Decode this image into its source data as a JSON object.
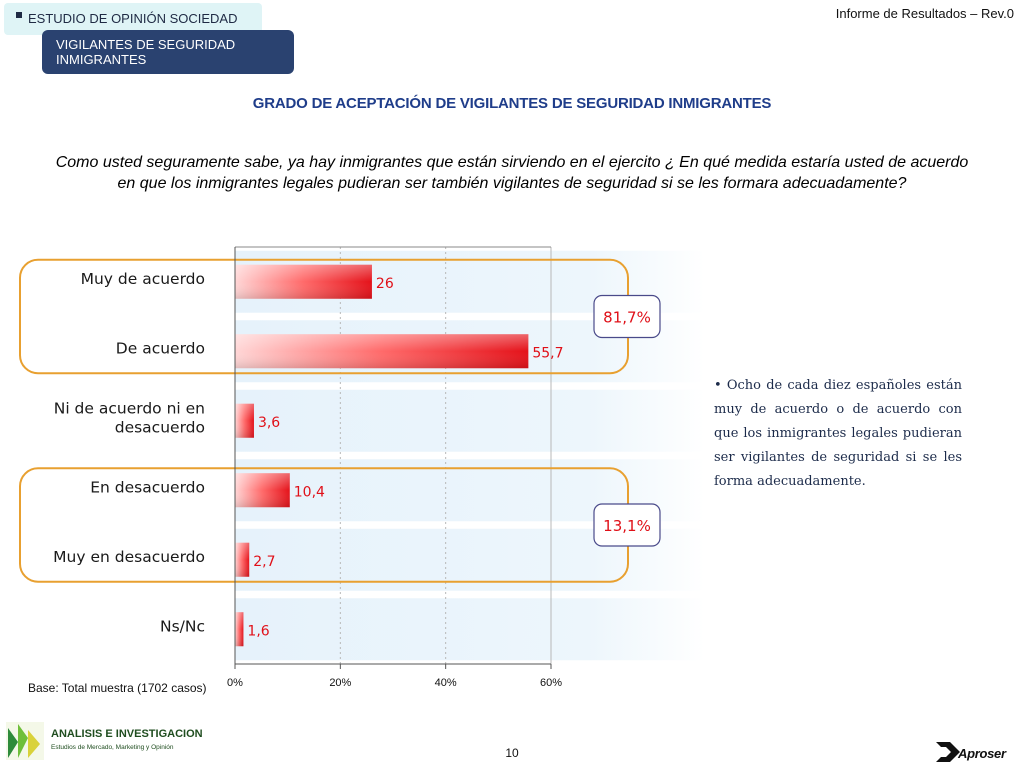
{
  "header": {
    "study_tag": "ESTUDIO DE OPINIÓN SOCIEDAD",
    "section_line1": "VIGILANTES DE SEGURIDAD",
    "section_line2": "INMIGRANTES",
    "report_rev": "Informe de Resultados – Rev.0"
  },
  "question": {
    "line1": "Como usted seguramente sabe, ya hay inmigrantes que están sirviendo en el ejercito  ¿ En qué medida estaría usted de acuerdo",
    "line2": "en que los inmigrantes legales pudieran ser también vigilantes de seguridad si se les formara adecuadamente?"
  },
  "side_note": "• Ocho de cada diez españoles están muy de acuerdo o de acuerdo con que los inmigrantes legales pudieran ser vigilantes de seguridad si se les forma adecuadamente.",
  "base_note": "Base: Total muestra (1702 casos)",
  "footer": {
    "logo_title": "ANALISIS E INVESTIGACION",
    "logo_subtitle": "Estudios de Mercado, Marketing y Opinión",
    "page_number": "10",
    "partner_logo": "Aproser"
  },
  "chart_data": {
    "type": "bar",
    "orientation": "horizontal",
    "title": "GRADO DE ACEPTACIÓN DE VIGILANTES DE SEGURIDAD INMIGRANTES",
    "categories": [
      [
        "Muy de acuerdo"
      ],
      [
        "De acuerdo"
      ],
      [
        "Ni de acuerdo ni en",
        "desacuerdo"
      ],
      [
        "En desacuerdo"
      ],
      [
        "Muy en desacuerdo"
      ],
      [
        "Ns/Nc"
      ]
    ],
    "values": [
      26,
      55.7,
      3.6,
      10.4,
      2.7,
      1.6
    ],
    "value_labels": [
      "26",
      "55,7",
      "3,6",
      "10,4",
      "2,7",
      "1,6"
    ],
    "xlim": [
      0,
      60
    ],
    "xticks": [
      0,
      20,
      40,
      60
    ],
    "xtick_labels": [
      "0%",
      "20%",
      "40%",
      "60%"
    ],
    "grid": true,
    "groups": [
      {
        "label": "81,7%",
        "rows": [
          0,
          1
        ]
      },
      {
        "label": "13,1%",
        "rows": [
          3,
          4
        ]
      }
    ],
    "colors": {
      "bar_light": "#ffd9d9",
      "bar_dark": "#e8141c",
      "value_text": "#e01018",
      "group_border": "#e8a030",
      "badge_border": "#4a4a8a",
      "band": "#e8f3fb"
    }
  }
}
